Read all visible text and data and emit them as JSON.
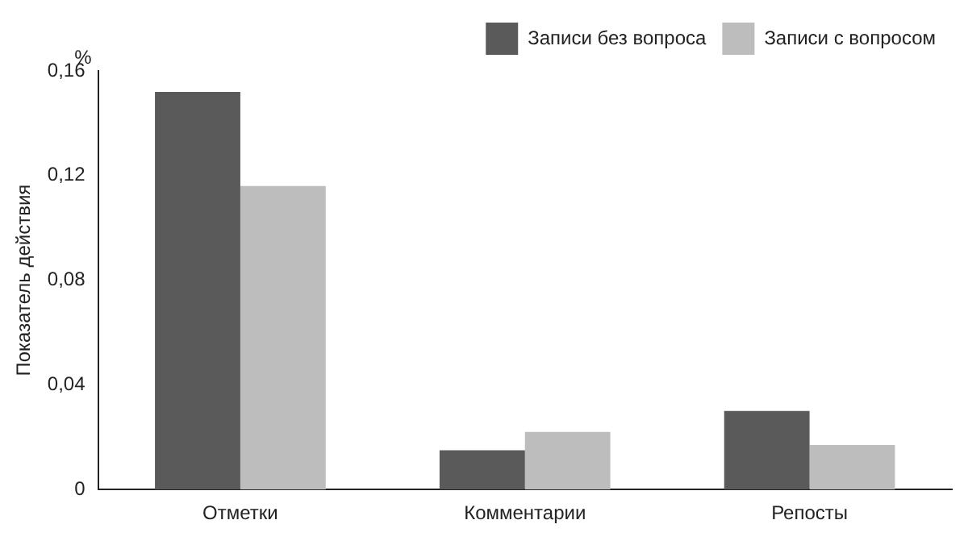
{
  "chart_data": {
    "type": "bar",
    "ylabel": "Показатель действия",
    "annotations": [
      "%"
    ],
    "categories": [
      "Отметки",
      "Комментарии",
      "Репосты"
    ],
    "series": [
      {
        "name": "Записи без вопроса",
        "color": "#5a5a5a",
        "values": [
          0.152,
          0.015,
          0.03
        ]
      },
      {
        "name": "Записи с вопросом",
        "color": "#bdbdbd",
        "values": [
          0.116,
          0.022,
          0.017
        ]
      }
    ],
    "ylim": [
      0,
      0.16
    ],
    "yticks": [
      0,
      {
        "value": 0.04,
        "label": "0,04"
      },
      {
        "value": 0.08,
        "label": "0,08"
      },
      {
        "value": 0.12,
        "label": "0,12"
      },
      {
        "value": 0.16,
        "label": "0,16"
      }
    ],
    "grid": false,
    "legend": "top right"
  }
}
